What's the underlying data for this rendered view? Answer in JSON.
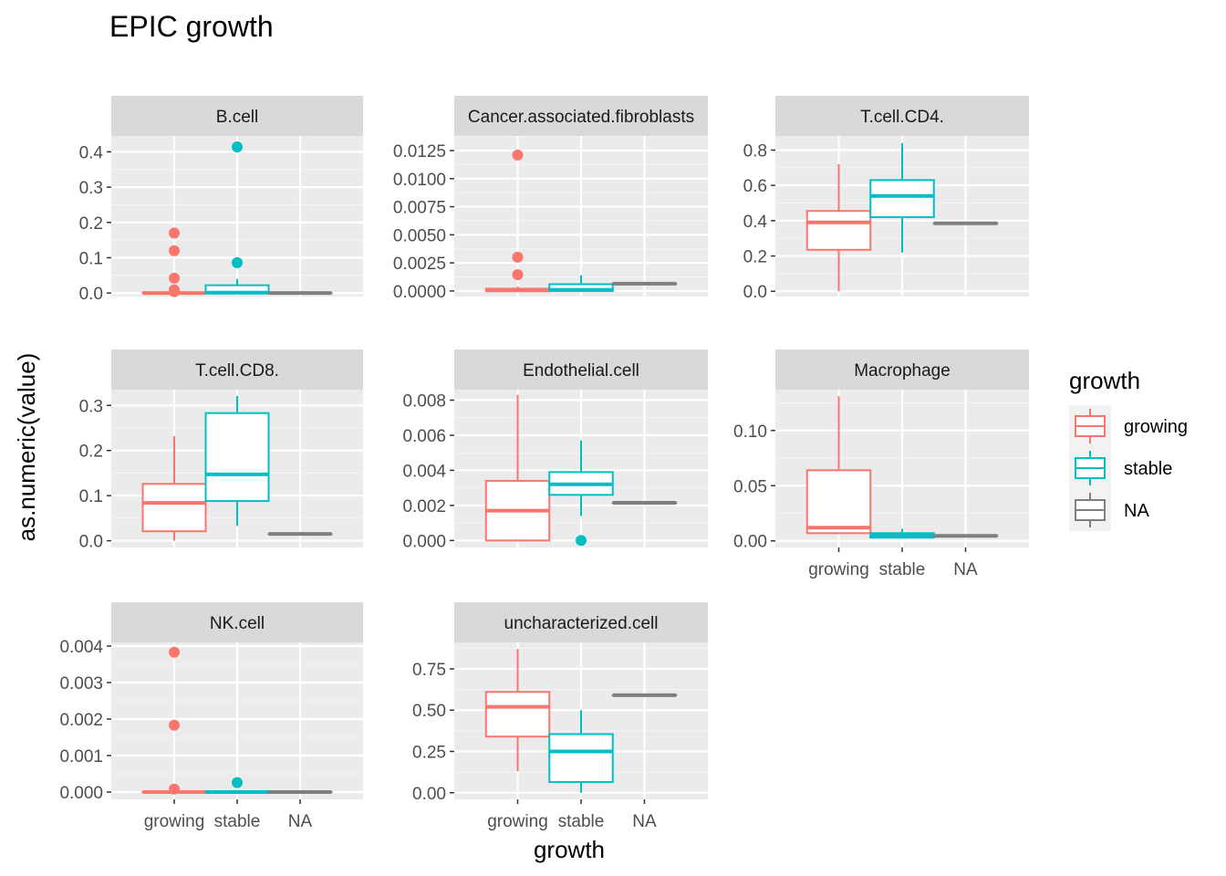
{
  "chart_data": {
    "type": "boxplot",
    "title": "EPIC growth",
    "xlabel": "growth",
    "ylabel": "as.numeric(value)",
    "categories": [
      "growing",
      "stable",
      "NA"
    ],
    "legend": {
      "title": "growth",
      "position": "right",
      "entries": [
        {
          "label": "growing",
          "color": "#F8766D"
        },
        {
          "label": "stable",
          "color": "#00BFC4"
        },
        {
          "label": "NA",
          "color": "#7F7F7F"
        }
      ]
    },
    "grid": true,
    "facets": [
      {
        "name": "B.cell",
        "ylim": [
          -0.01,
          0.445
        ],
        "yticks": [
          0.0,
          0.1,
          0.2,
          0.3,
          0.4
        ],
        "ytick_labels": [
          "0.0",
          "0.1",
          "0.2",
          "0.3",
          "0.4"
        ],
        "boxes": [
          {
            "group": "growing",
            "min": 0,
            "q1": 0,
            "median": 0,
            "q3": 0.001,
            "max": 0.002,
            "outliers": [
              0.17,
              0.12,
              0.042,
              0.009,
              0.004
            ]
          },
          {
            "group": "stable",
            "min": 0,
            "q1": 0,
            "median": 0.001,
            "q3": 0.022,
            "max": 0.04,
            "outliers": [
              0.414,
              0.086
            ]
          },
          {
            "group": "NA",
            "min": 0,
            "q1": 0,
            "median": 0,
            "q3": 0,
            "max": 0,
            "outliers": []
          }
        ]
      },
      {
        "name": "Cancer.associated.fibroblasts",
        "ylim": [
          -0.0005,
          0.0138
        ],
        "yticks": [
          0.0,
          0.0025,
          0.005,
          0.0075,
          0.01,
          0.0125
        ],
        "ytick_labels": [
          "0.0000",
          "0.0025",
          "0.0050",
          "0.0075",
          "0.0100",
          "0.0125"
        ],
        "boxes": [
          {
            "group": "growing",
            "min": 0,
            "q1": 0,
            "median": 5e-05,
            "q3": 0.0002,
            "max": 0.0004,
            "outliers": [
              0.0121,
              0.003,
              0.00145
            ]
          },
          {
            "group": "stable",
            "min": 0,
            "q1": 0,
            "median": 0.0001,
            "q3": 0.0006,
            "max": 0.0014,
            "outliers": []
          },
          {
            "group": "NA",
            "min": 0.00065,
            "q1": 0.00065,
            "median": 0.00065,
            "q3": 0.00065,
            "max": 0.00065,
            "outliers": []
          }
        ]
      },
      {
        "name": "T.cell.CD4.",
        "ylim": [
          -0.03,
          0.88
        ],
        "yticks": [
          0.0,
          0.2,
          0.4,
          0.6,
          0.8
        ],
        "ytick_labels": [
          "0.0",
          "0.2",
          "0.4",
          "0.6",
          "0.8"
        ],
        "boxes": [
          {
            "group": "growing",
            "min": 0.0,
            "q1": 0.235,
            "median": 0.39,
            "q3": 0.455,
            "max": 0.72,
            "outliers": []
          },
          {
            "group": "stable",
            "min": 0.22,
            "q1": 0.42,
            "median": 0.54,
            "q3": 0.63,
            "max": 0.84,
            "outliers": []
          },
          {
            "group": "NA",
            "min": 0.385,
            "q1": 0.385,
            "median": 0.385,
            "q3": 0.385,
            "max": 0.385,
            "outliers": []
          }
        ]
      },
      {
        "name": "T.cell.CD8.",
        "ylim": [
          -0.015,
          0.335
        ],
        "yticks": [
          0.0,
          0.1,
          0.2,
          0.3
        ],
        "ytick_labels": [
          "0.0",
          "0.1",
          "0.2",
          "0.3"
        ],
        "boxes": [
          {
            "group": "growing",
            "min": 0.0,
            "q1": 0.021,
            "median": 0.084,
            "q3": 0.126,
            "max": 0.232,
            "outliers": []
          },
          {
            "group": "stable",
            "min": 0.033,
            "q1": 0.088,
            "median": 0.147,
            "q3": 0.283,
            "max": 0.321,
            "outliers": []
          },
          {
            "group": "NA",
            "min": 0.015,
            "q1": 0.015,
            "median": 0.015,
            "q3": 0.015,
            "max": 0.015,
            "outliers": []
          }
        ]
      },
      {
        "name": "Endothelial.cell",
        "ylim": [
          -0.0004,
          0.0086
        ],
        "yticks": [
          0.0,
          0.002,
          0.004,
          0.006,
          0.008
        ],
        "ytick_labels": [
          "0.000",
          "0.002",
          "0.004",
          "0.006",
          "0.008"
        ],
        "boxes": [
          {
            "group": "growing",
            "min": 0.0,
            "q1": 0.0,
            "median": 0.0017,
            "q3": 0.0034,
            "max": 0.0083,
            "outliers": []
          },
          {
            "group": "stable",
            "min": 0.0014,
            "q1": 0.0026,
            "median": 0.0032,
            "q3": 0.0039,
            "max": 0.0057,
            "outliers": [
              0.0
            ]
          },
          {
            "group": "NA",
            "min": 0.00215,
            "q1": 0.00215,
            "median": 0.00215,
            "q3": 0.00215,
            "max": 0.00215,
            "outliers": []
          }
        ]
      },
      {
        "name": "Macrophage",
        "ylim": [
          -0.006,
          0.137
        ],
        "yticks": [
          0.0,
          0.05,
          0.1
        ],
        "ytick_labels": [
          "0.00",
          "0.05",
          "0.10"
        ],
        "boxes": [
          {
            "group": "growing",
            "min": 0.007,
            "q1": 0.007,
            "median": 0.012,
            "q3": 0.064,
            "max": 0.131,
            "outliers": []
          },
          {
            "group": "stable",
            "min": 0.002,
            "q1": 0.003,
            "median": 0.005,
            "q3": 0.007,
            "max": 0.011,
            "outliers": []
          },
          {
            "group": "NA",
            "min": 0.0045,
            "q1": 0.0045,
            "median": 0.0045,
            "q3": 0.0045,
            "max": 0.0045,
            "outliers": []
          }
        ]
      },
      {
        "name": "NK.cell",
        "ylim": [
          -0.0002,
          0.0041
        ],
        "yticks": [
          0.0,
          0.001,
          0.002,
          0.003,
          0.004
        ],
        "ytick_labels": [
          "0.000",
          "0.001",
          "0.002",
          "0.003",
          "0.004"
        ],
        "boxes": [
          {
            "group": "growing",
            "min": 0,
            "q1": 0,
            "median": 0,
            "q3": 1e-05,
            "max": 2e-05,
            "outliers": [
              0.00383,
              0.00183,
              8e-05
            ]
          },
          {
            "group": "stable",
            "min": 0,
            "q1": 0,
            "median": 0,
            "q3": 1e-05,
            "max": 2e-05,
            "outliers": [
              0.00026
            ]
          },
          {
            "group": "NA",
            "min": 0,
            "q1": 0,
            "median": 0,
            "q3": 0,
            "max": 0,
            "outliers": []
          }
        ]
      },
      {
        "name": "uncharacterized.cell",
        "ylim": [
          -0.04,
          0.91
        ],
        "yticks": [
          0.0,
          0.25,
          0.5,
          0.75
        ],
        "ytick_labels": [
          "0.00",
          "0.25",
          "0.50",
          "0.75"
        ],
        "boxes": [
          {
            "group": "growing",
            "min": 0.13,
            "q1": 0.34,
            "median": 0.52,
            "q3": 0.61,
            "max": 0.87,
            "outliers": []
          },
          {
            "group": "stable",
            "min": 0.0,
            "q1": 0.065,
            "median": 0.25,
            "q3": 0.355,
            "max": 0.5,
            "outliers": []
          },
          {
            "group": "NA",
            "min": 0.59,
            "q1": 0.59,
            "median": 0.59,
            "q3": 0.59,
            "max": 0.59,
            "outliers": []
          }
        ]
      }
    ]
  }
}
